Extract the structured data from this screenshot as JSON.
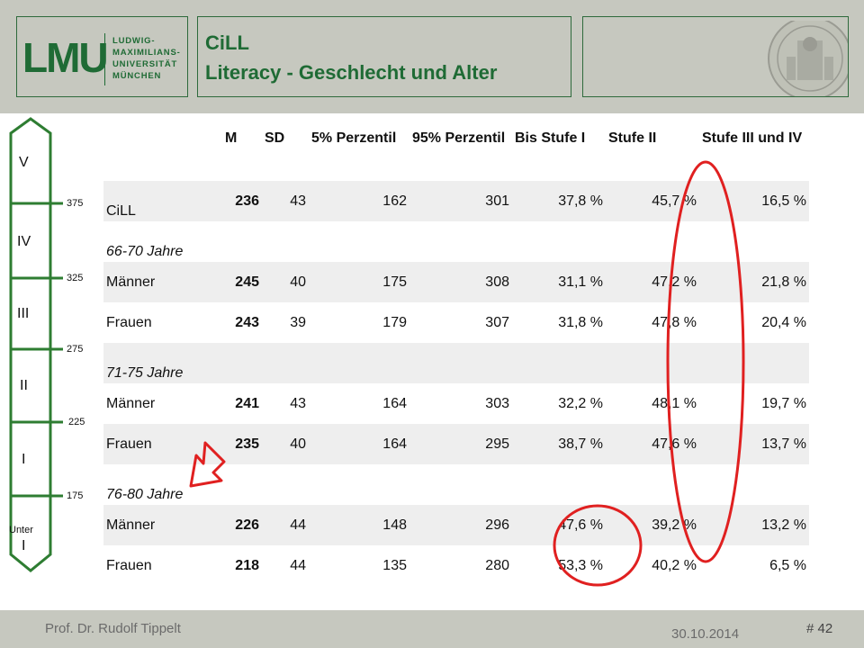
{
  "header": {
    "logo": {
      "mark": "LMU",
      "lines": [
        "LUDWIG-",
        "MAXIMILIANS-",
        "UNIVERSITÄT",
        "MÜNCHEN"
      ]
    },
    "title_line1": "CiLL",
    "title_line2": "Literacy - Geschlecht und Alter"
  },
  "scale": {
    "levels": [
      "V",
      "IV",
      "III",
      "II",
      "I"
    ],
    "bottom_level": [
      "Unter",
      "I"
    ],
    "ticks": [
      "375",
      "325",
      "275",
      "225",
      "175"
    ],
    "color": "#2e7d32"
  },
  "table": {
    "headers": [
      "M",
      "SD",
      "5% Perzentil",
      "95% Perzentil",
      "Bis Stufe I",
      "Stufe II",
      "Stufe III und IV"
    ],
    "rows": [
      {
        "label": "CiLL",
        "values": [
          "236",
          "43",
          "162",
          "301",
          "37,8 %",
          "45,7 %",
          "16,5 %"
        ]
      },
      {
        "group": "66-70 Jahre"
      },
      {
        "label": "Männer",
        "values": [
          "245",
          "40",
          "175",
          "308",
          "31,1 %",
          "47,2 %",
          "21,8 %"
        ]
      },
      {
        "label": "Frauen",
        "values": [
          "243",
          "39",
          "179",
          "307",
          "31,8 %",
          "47,8 %",
          "20,4 %"
        ]
      },
      {
        "group": "71-75 Jahre"
      },
      {
        "label": "Männer",
        "values": [
          "241",
          "43",
          "164",
          "303",
          "32,2 %",
          "48,1 %",
          "19,7 %"
        ]
      },
      {
        "label": "Frauen",
        "values": [
          "235",
          "40",
          "164",
          "295",
          "38,7 %",
          "47,6 %",
          "13,7 %"
        ]
      },
      {
        "group": "76-80 Jahre"
      },
      {
        "label": "Männer",
        "values": [
          "226",
          "44",
          "148",
          "296",
          "47,6 %",
          "39,2 %",
          "13,2 %"
        ]
      },
      {
        "label": "Frauen",
        "values": [
          "218",
          "44",
          "135",
          "280",
          "53,3 %",
          "40,2 %",
          "6,5 %"
        ]
      }
    ]
  },
  "annotations": {
    "highlight_color": "#e02020"
  },
  "footer": {
    "author": "Prof. Dr. Rudolf Tippelt",
    "date": "30.10.2014",
    "page": "# 42"
  }
}
